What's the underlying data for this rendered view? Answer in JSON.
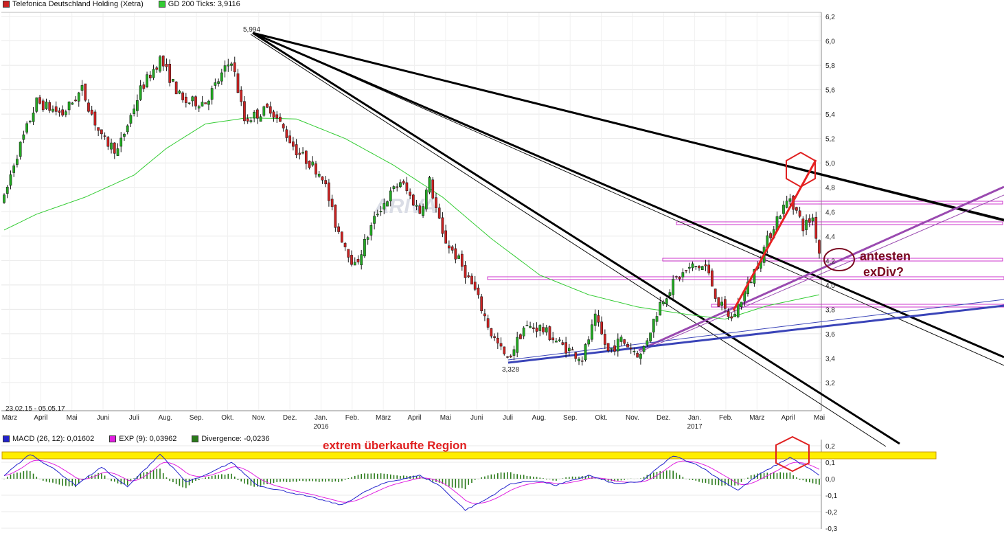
{
  "chart_data": [
    {
      "type": "candlestick",
      "title": "Telefonica Deutschland Holding (Xetra)",
      "indicator": "GD 200 Ticks: 3,9116",
      "date_range": "23.02.15 - 05.05.17",
      "x_month_labels": [
        "März",
        "April",
        "Mai",
        "Juni",
        "Juli",
        "Aug.",
        "Sep.",
        "Okt.",
        "Nov.",
        "Dez.",
        "Jan.",
        "Feb.",
        "März",
        "April",
        "Mai",
        "Juni",
        "Juli",
        "Aug.",
        "Sep.",
        "Okt.",
        "Nov.",
        "Dez.",
        "Jan.",
        "Feb.",
        "März",
        "April",
        "Mai"
      ],
      "year_labels": [
        "2016",
        "2017"
      ],
      "y_ticks": [
        "6,2",
        "6,0",
        "5,8",
        "5,6",
        "5,4",
        "5,2",
        "5,0",
        "4,8",
        "4,6",
        "4,4",
        "4,2",
        "4,0",
        "3,8",
        "3,6",
        "3,4",
        "3,2"
      ],
      "ylim": [
        3.05,
        6.22
      ],
      "high_label": "5,994",
      "low_label": "3,328",
      "price_anchors": [
        [
          0,
          4.7
        ],
        [
          3,
          5.0
        ],
        [
          10,
          5.5
        ],
        [
          18,
          5.4
        ],
        [
          24,
          5.6
        ],
        [
          30,
          5.2
        ],
        [
          35,
          5.1
        ],
        [
          42,
          5.6
        ],
        [
          48,
          5.85
        ],
        [
          55,
          5.5
        ],
        [
          62,
          5.5
        ],
        [
          70,
          5.85
        ],
        [
          74,
          5.35
        ],
        [
          82,
          5.45
        ],
        [
          90,
          5.1
        ],
        [
          98,
          4.9
        ],
        [
          102,
          4.5
        ],
        [
          108,
          4.15
        ],
        [
          115,
          4.6
        ],
        [
          122,
          4.85
        ],
        [
          128,
          4.6
        ],
        [
          131,
          4.85
        ],
        [
          135,
          4.4
        ],
        [
          140,
          4.2
        ],
        [
          145,
          3.95
        ],
        [
          150,
          3.6
        ],
        [
          155,
          3.38
        ],
        [
          160,
          3.65
        ],
        [
          165,
          3.65
        ],
        [
          172,
          3.5
        ],
        [
          178,
          3.4
        ],
        [
          182,
          3.72
        ],
        [
          186,
          3.45
        ],
        [
          190,
          3.55
        ],
        [
          196,
          3.42
        ],
        [
          202,
          3.85
        ],
        [
          207,
          4.05
        ],
        [
          212,
          4.15
        ],
        [
          216,
          4.15
        ],
        [
          220,
          3.85
        ],
        [
          224,
          3.72
        ],
        [
          230,
          4.05
        ],
        [
          234,
          4.3
        ],
        [
          238,
          4.55
        ],
        [
          242,
          4.72
        ],
        [
          246,
          4.48
        ],
        [
          249,
          4.55
        ],
        [
          251,
          4.27
        ]
      ],
      "sma200_anchors": [
        [
          0,
          4.45
        ],
        [
          10,
          4.58
        ],
        [
          25,
          4.72
        ],
        [
          40,
          4.9
        ],
        [
          50,
          5.12
        ],
        [
          62,
          5.32
        ],
        [
          75,
          5.37
        ],
        [
          90,
          5.36
        ],
        [
          105,
          5.2
        ],
        [
          120,
          4.98
        ],
        [
          135,
          4.72
        ],
        [
          150,
          4.38
        ],
        [
          165,
          4.08
        ],
        [
          180,
          3.92
        ],
        [
          195,
          3.82
        ],
        [
          210,
          3.76
        ],
        [
          222,
          3.72
        ],
        [
          235,
          3.83
        ],
        [
          251,
          3.92
        ]
      ],
      "num_bars": 252,
      "annotations": {
        "text_antesten": "antesten",
        "text_exdiv": "exDiv?"
      }
    },
    {
      "type": "macd",
      "legend": [
        "MACD (26, 12): 0,01602",
        "EXP (9): 0,03962",
        "Divergence: -0,0236"
      ],
      "y_ticks": [
        "0,2",
        "0,1",
        "0,0",
        "-0,1",
        "-0,2",
        "-0,3"
      ],
      "ylim": [
        -0.3,
        0.2
      ],
      "annotation": "extrem überkaufte Region",
      "colors": {
        "macd": "#2222cc",
        "exp": "#e020e0",
        "divergence": "#2a7a1a"
      }
    }
  ],
  "colors": {
    "bull": "#22aa22",
    "bear": "#cc2222",
    "sma": "#33cc33",
    "highlight": "#ffee00",
    "note_red": "#e02020",
    "note_dark": "#7a0a20"
  }
}
